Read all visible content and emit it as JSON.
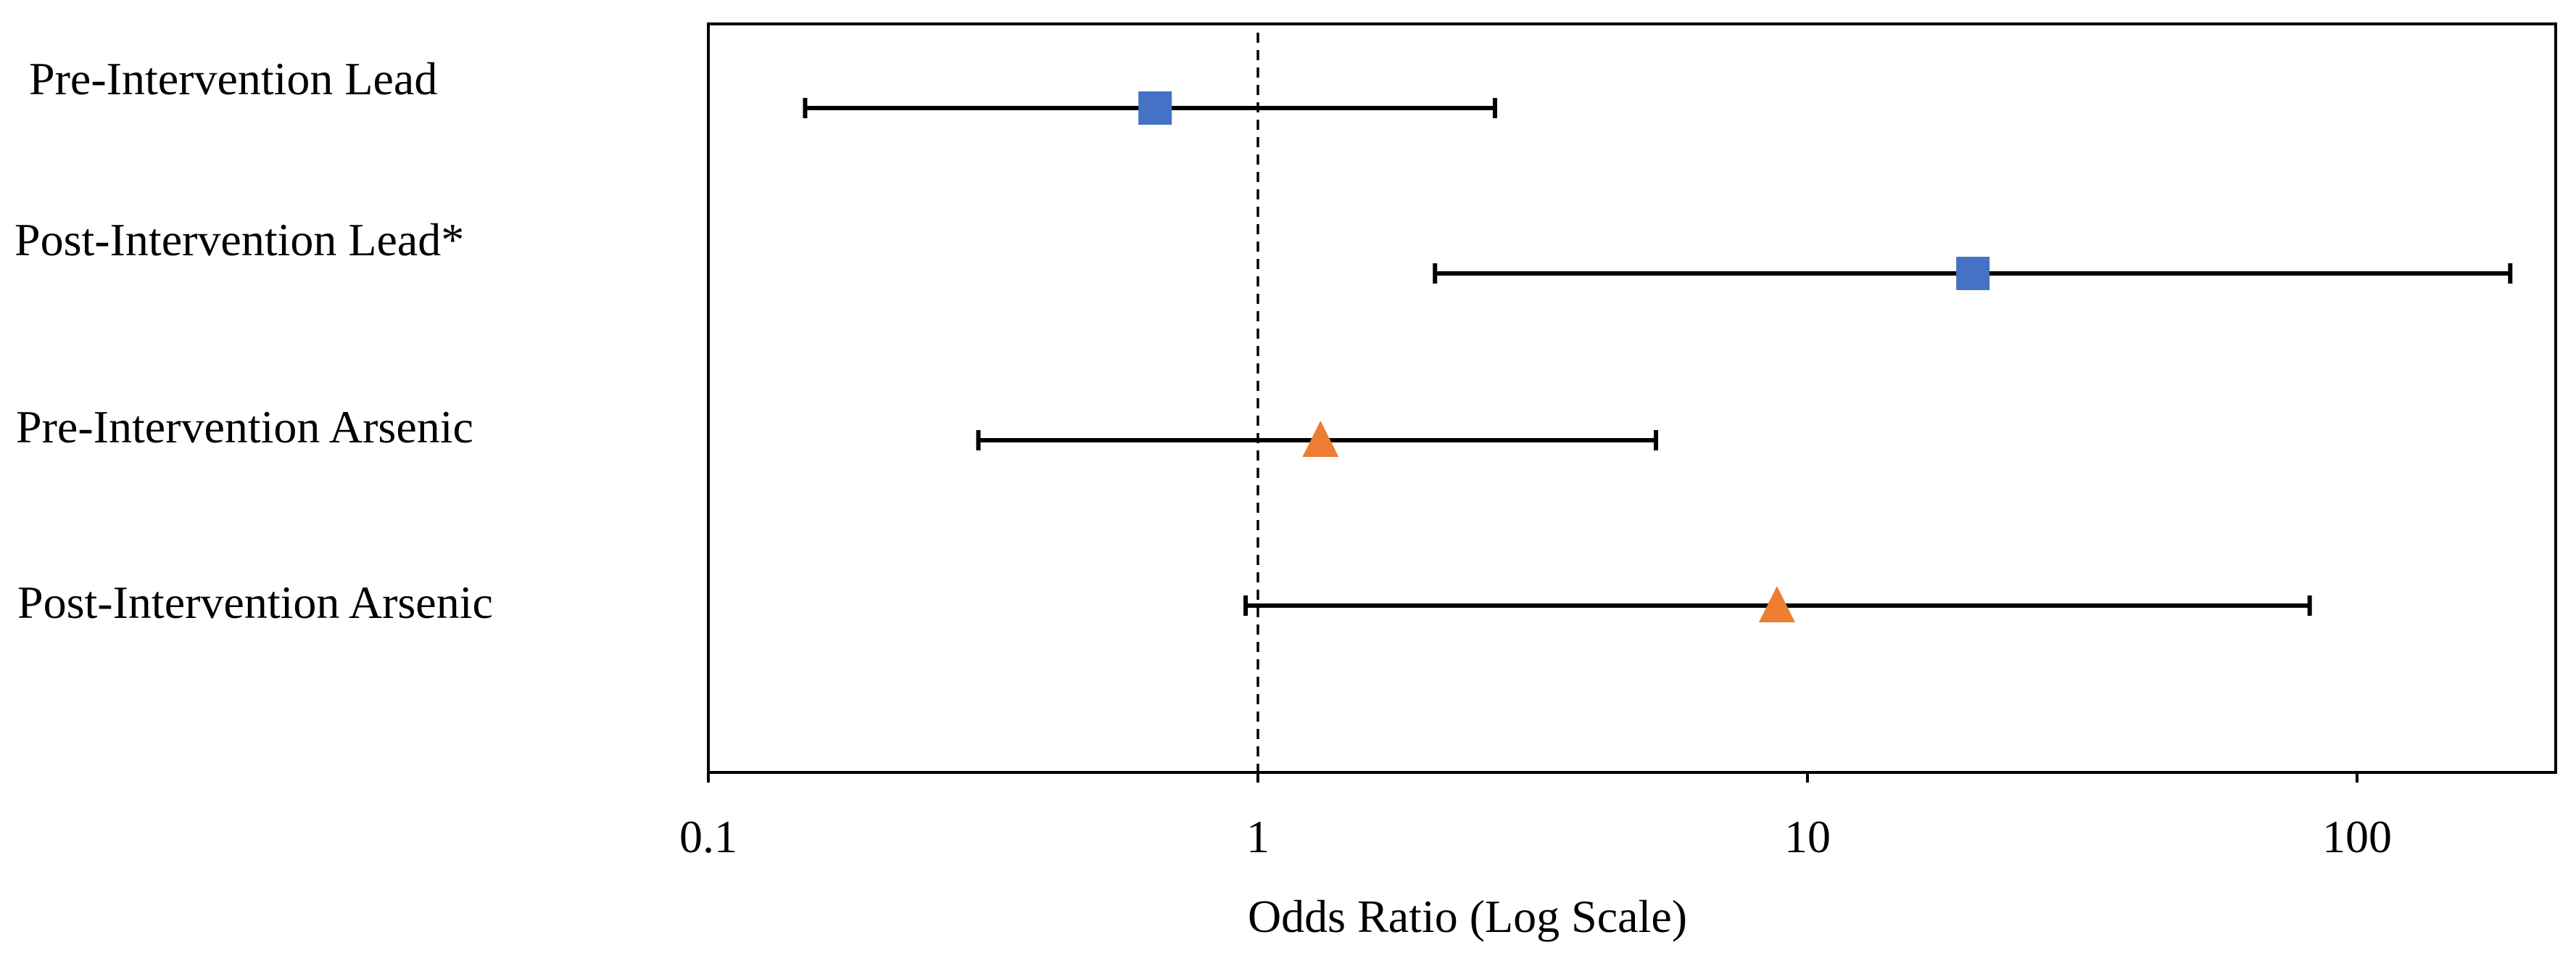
{
  "chart_data": {
    "type": "forest",
    "xlabel": "Odds Ratio (Log Scale)",
    "x_scale": "log",
    "xlim": [
      0.1,
      180
    ],
    "xticks": [
      0.1,
      1,
      10,
      100
    ],
    "xtick_labels": [
      "0.1",
      "1",
      "10",
      "100"
    ],
    "reference_line": 1,
    "rows": [
      {
        "label": "Pre-Intervention Lead",
        "or": 0.65,
        "ci_low": 0.15,
        "ci_high": 2.7,
        "marker": "square",
        "color": "#4472C4"
      },
      {
        "label": "Post-Intervention Lead*",
        "or": 20,
        "ci_low": 2.1,
        "ci_high": 190,
        "marker": "square",
        "color": "#4472C4"
      },
      {
        "label": "Pre-Intervention Arsenic",
        "or": 1.3,
        "ci_low": 0.31,
        "ci_high": 5.3,
        "marker": "triangle",
        "color": "#ED7D31"
      },
      {
        "label": "Post-Intervention Arsenic",
        "or": 8.8,
        "ci_low": 0.95,
        "ci_high": 82,
        "marker": "triangle",
        "color": "#ED7D31"
      }
    ]
  }
}
